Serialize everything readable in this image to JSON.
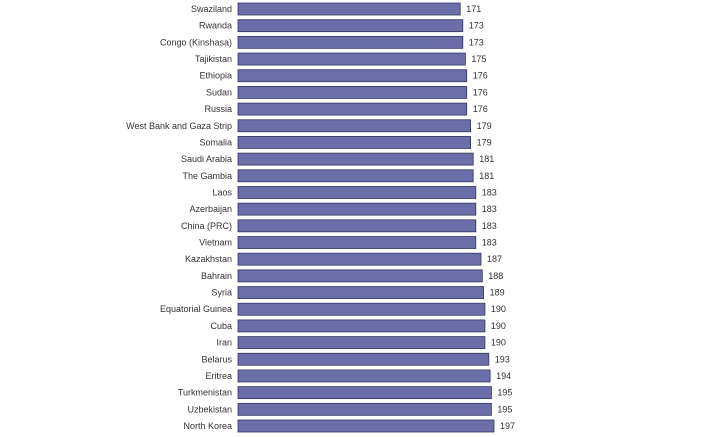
{
  "chart_data": {
    "type": "bar",
    "orientation": "horizontal",
    "categories": [
      "Swaziland",
      "Rwanda",
      "Congo (Kinshasa)",
      "Tajikistan",
      "Ethiopia",
      "Sudan",
      "Russia",
      "West Bank and Gaza Strip",
      "Somalia",
      "Saudi Arabia",
      "The Gambia",
      "Laos",
      "Azerbaijan",
      "China (PRC)",
      "Vietnam",
      "Kazakhstan",
      "Bahrain",
      "Syria",
      "Equatorial Guinea",
      "Cuba",
      "Iran",
      "Belarus",
      "Eritrea",
      "Turkmenistan",
      "Uzbekistan",
      "North Korea"
    ],
    "values": [
      171,
      173,
      173,
      175,
      176,
      176,
      176,
      179,
      179,
      181,
      181,
      183,
      183,
      183,
      183,
      187,
      188,
      189,
      190,
      190,
      190,
      193,
      194,
      195,
      195,
      197
    ],
    "xlim": [
      0,
      197
    ],
    "grid": false,
    "colors": {
      "bar": "#6b6ea8",
      "bar_edge": "#34375e"
    }
  }
}
